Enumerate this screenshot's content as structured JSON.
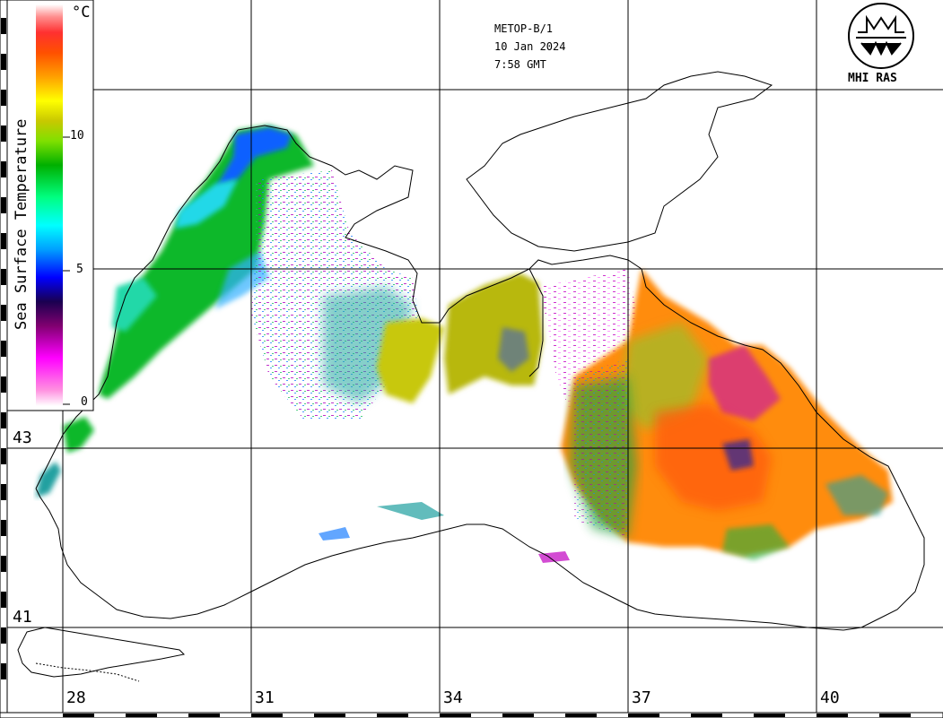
{
  "satellite": "METOP-B/1",
  "date": "10 Jan 2024",
  "time": "7:58 GMT",
  "organization": "MHI RAS",
  "legend": {
    "title": "Sea Surface Temperature",
    "unit": "°C",
    "tick_labels": [
      "10",
      "5",
      "0"
    ],
    "color_stops": [
      "#ffffff",
      "#ff80c0",
      "#ff00ff",
      "#800080",
      "#000060",
      "#0000ff",
      "#00a0ff",
      "#00ffff",
      "#00ff80",
      "#00c000",
      "#80ff00",
      "#c0c000",
      "#ffff00",
      "#ffa000",
      "#ff6000",
      "#ff2020",
      "#ff8080",
      "#ffffff"
    ]
  },
  "latitude_labels": [
    "43",
    "41"
  ],
  "longitude_labels": [
    "28",
    "31",
    "34",
    "37",
    "40"
  ],
  "colors": {
    "cold_green": "#10c020",
    "cyan": "#20d0e0",
    "blue": "#1050ff",
    "yellow_olive": "#c8c810",
    "orange": "#ff8c10",
    "red_orange": "#ff5a10",
    "magenta": "#c000c0"
  }
}
